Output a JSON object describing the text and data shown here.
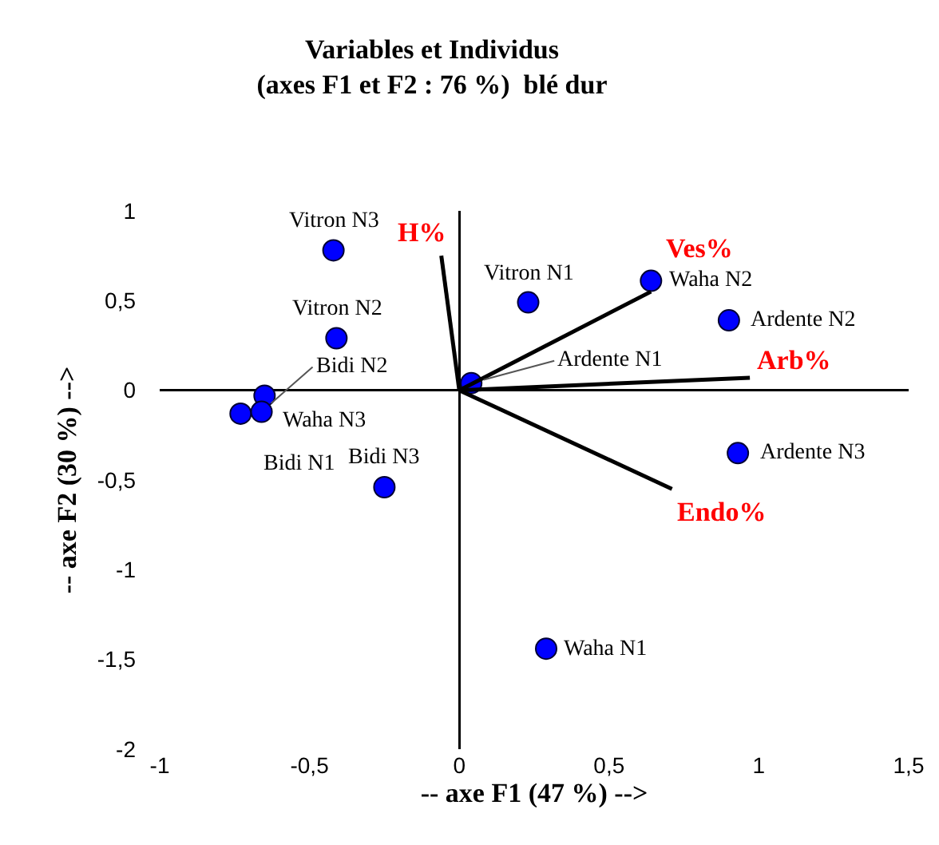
{
  "chart_data": {
    "type": "scatter",
    "title": "Variables et Individus\n(axes F1 et F2 : 76 %)  blé dur",
    "xlabel": "-- axe F1 (47 %) -->",
    "ylabel": "-- axe F2 (30 %) -->",
    "xlim": [
      -1,
      1.5
    ],
    "xticks": [
      -1,
      {
        "value": -0.5,
        "label": "-0,5"
      },
      0,
      {
        "value": 0.5,
        "label": "0,5"
      },
      1,
      {
        "value": 1.5,
        "label": "1,5"
      }
    ],
    "ylim": [
      -2,
      1
    ],
    "yticks": [
      -2,
      {
        "value": -1.5,
        "label": "-1,5"
      },
      -1,
      {
        "value": -0.5,
        "label": "-0,5"
      },
      0,
      {
        "value": 0.5,
        "label": "0,5"
      },
      1
    ],
    "marker": "circle",
    "series": [
      {
        "color": "#0000ff",
        "x": [
          -0.42,
          -0.41,
          -0.65,
          -0.73,
          -0.66,
          -0.25,
          0.23,
          0.64,
          0.9,
          0.04,
          0.93,
          0.29
        ],
        "values": [
          0.78,
          0.29,
          -0.03,
          -0.13,
          -0.12,
          -0.54,
          0.49,
          0.61,
          0.39,
          0.04,
          -0.35,
          -1.44
        ]
      },
      {
        "type": "line",
        "marker": "none",
        "name": "H%",
        "color": "#000000",
        "x": [
          0,
          -0.06
        ],
        "values": [
          0,
          0.75
        ]
      },
      {
        "type": "line",
        "marker": "none",
        "name": "Ves%",
        "color": "#000000",
        "x": [
          0,
          0.64
        ],
        "values": [
          0,
          0.55
        ]
      },
      {
        "type": "line",
        "marker": "none",
        "name": "Arb%",
        "color": "#000000",
        "x": [
          0,
          0.97
        ],
        "values": [
          0,
          0.07
        ]
      },
      {
        "type": "line",
        "marker": "none",
        "name": "Endo%",
        "color": "#000000",
        "x": [
          0,
          0.71
        ],
        "values": [
          0,
          -0.55
        ]
      }
    ],
    "annotations": [
      {
        "text": "Vitron N3",
        "x": -0.42,
        "y": 0.78
      },
      {
        "text": "Vitron N2",
        "x": -0.41,
        "y": 0.29
      },
      {
        "text": "Waha N3",
        "x": -0.65,
        "y": -0.03
      },
      {
        "text": "Bidi N1",
        "x": -0.73,
        "y": -0.13
      },
      {
        "text": "Bidi N2",
        "x": -0.66,
        "y": -0.12
      },
      {
        "text": "Bidi N3",
        "x": -0.25,
        "y": -0.54
      },
      {
        "text": "Vitron N1",
        "x": 0.23,
        "y": 0.49
      },
      {
        "text": "Waha N2",
        "x": 0.64,
        "y": 0.61
      },
      {
        "text": "Ardente N2",
        "x": 0.9,
        "y": 0.39
      },
      {
        "text": "Ardente N1",
        "x": 0.04,
        "y": 0.04
      },
      {
        "text": "Ardente N3",
        "x": 0.93,
        "y": -0.35
      },
      {
        "text": "Waha N1",
        "x": 0.29,
        "y": -1.44
      }
    ]
  }
}
